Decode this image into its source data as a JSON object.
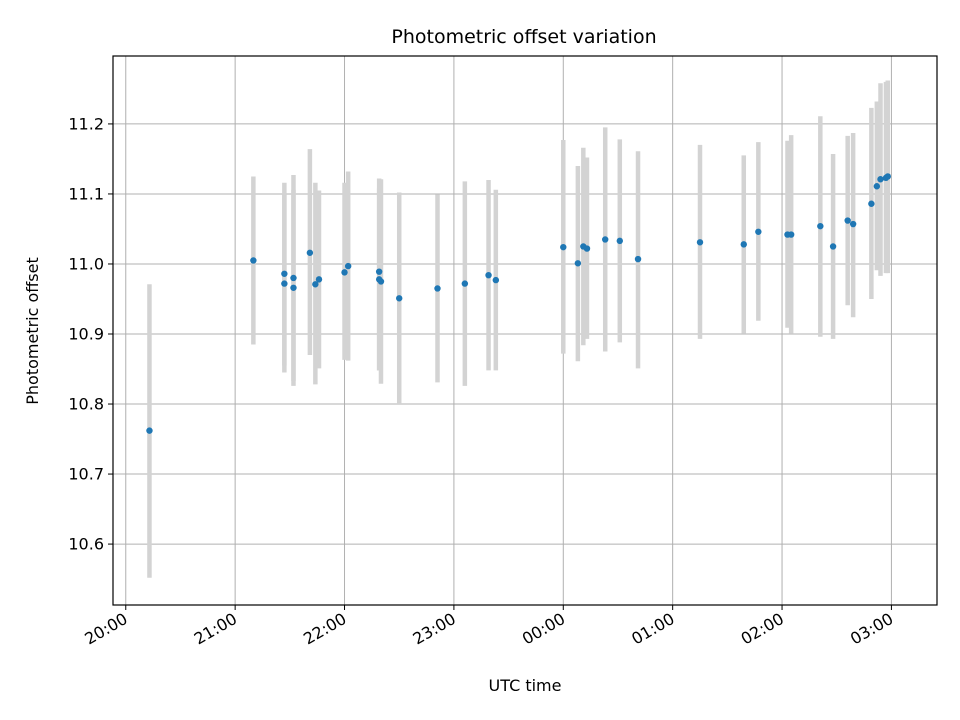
{
  "chart_data": {
    "type": "scatter",
    "title": "Photometric offset variation",
    "xlabel": "UTC time",
    "ylabel": "Photometric offset",
    "x_ticks": [
      "20:00",
      "21:00",
      "22:00",
      "23:00",
      "00:00",
      "01:00",
      "02:00",
      "03:00"
    ],
    "y_ticks": [
      "10.6",
      "10.7",
      "10.8",
      "10.9",
      "11.0",
      "11.1",
      "11.2"
    ],
    "xlim": [
      "19:53",
      "03:25"
    ],
    "ylim": [
      10.513,
      11.297
    ],
    "grid": true,
    "point_color": "#1f77b4",
    "errorbar_color": "#d3d3d3",
    "points": [
      {
        "t": "20:13",
        "y": 10.762,
        "lo": 10.552,
        "hi": 10.971
      },
      {
        "t": "21:10",
        "y": 11.005,
        "lo": 10.885,
        "hi": 11.125
      },
      {
        "t": "21:27",
        "y": 10.986,
        "lo": 10.855,
        "hi": 11.116
      },
      {
        "t": "21:27",
        "y": 10.972,
        "lo": 10.845,
        "hi": 11.099
      },
      {
        "t": "21:32",
        "y": 10.98,
        "lo": 10.833,
        "hi": 11.127
      },
      {
        "t": "21:32",
        "y": 10.966,
        "lo": 10.826,
        "hi": 11.106
      },
      {
        "t": "21:41",
        "y": 11.016,
        "lo": 10.87,
        "hi": 11.164
      },
      {
        "t": "21:44",
        "y": 10.971,
        "lo": 10.828,
        "hi": 11.116
      },
      {
        "t": "21:46",
        "y": 10.978,
        "lo": 10.851,
        "hi": 11.105
      },
      {
        "t": "22:00",
        "y": 10.988,
        "lo": 10.863,
        "hi": 11.116
      },
      {
        "t": "22:02",
        "y": 10.997,
        "lo": 10.862,
        "hi": 11.132
      },
      {
        "t": "22:19",
        "y": 10.978,
        "lo": 10.848,
        "hi": 11.108
      },
      {
        "t": "22:19",
        "y": 10.989,
        "lo": 10.848,
        "hi": 11.122
      },
      {
        "t": "22:20",
        "y": 10.975,
        "lo": 10.829,
        "hi": 11.121
      },
      {
        "t": "22:30",
        "y": 10.951,
        "lo": 10.8,
        "hi": 11.102
      },
      {
        "t": "22:51",
        "y": 10.965,
        "lo": 10.831,
        "hi": 11.099
      },
      {
        "t": "23:06",
        "y": 10.972,
        "lo": 10.826,
        "hi": 11.118
      },
      {
        "t": "23:19",
        "y": 10.984,
        "lo": 10.848,
        "hi": 11.12
      },
      {
        "t": "23:23",
        "y": 10.977,
        "lo": 10.848,
        "hi": 11.106
      },
      {
        "t": "00:00",
        "y": 11.024,
        "lo": 10.872,
        "hi": 11.177
      },
      {
        "t": "00:08",
        "y": 11.001,
        "lo": 10.861,
        "hi": 11.14
      },
      {
        "t": "00:11",
        "y": 11.025,
        "lo": 10.884,
        "hi": 11.166
      },
      {
        "t": "00:13",
        "y": 11.022,
        "lo": 10.893,
        "hi": 11.152
      },
      {
        "t": "00:23",
        "y": 11.035,
        "lo": 10.875,
        "hi": 11.195
      },
      {
        "t": "00:31",
        "y": 11.033,
        "lo": 10.888,
        "hi": 11.178
      },
      {
        "t": "00:41",
        "y": 11.007,
        "lo": 10.851,
        "hi": 11.161
      },
      {
        "t": "01:15",
        "y": 11.031,
        "lo": 10.893,
        "hi": 11.17
      },
      {
        "t": "01:39",
        "y": 11.028,
        "lo": 10.901,
        "hi": 11.155
      },
      {
        "t": "01:47",
        "y": 11.046,
        "lo": 10.919,
        "hi": 11.174
      },
      {
        "t": "02:03",
        "y": 11.042,
        "lo": 10.909,
        "hi": 11.176
      },
      {
        "t": "02:05",
        "y": 11.042,
        "lo": 10.901,
        "hi": 11.184
      },
      {
        "t": "02:21",
        "y": 11.054,
        "lo": 10.896,
        "hi": 11.211
      },
      {
        "t": "02:28",
        "y": 11.025,
        "lo": 10.893,
        "hi": 11.157
      },
      {
        "t": "02:36",
        "y": 11.062,
        "lo": 10.941,
        "hi": 11.183
      },
      {
        "t": "02:39",
        "y": 11.057,
        "lo": 10.924,
        "hi": 11.187
      },
      {
        "t": "02:49",
        "y": 11.086,
        "lo": 10.95,
        "hi": 11.223
      },
      {
        "t": "02:52",
        "y": 11.111,
        "lo": 10.991,
        "hi": 11.232
      },
      {
        "t": "02:54",
        "y": 11.121,
        "lo": 10.983,
        "hi": 11.258
      },
      {
        "t": "02:57",
        "y": 11.123,
        "lo": 10.987,
        "hi": 11.26
      },
      {
        "t": "02:58",
        "y": 11.125,
        "lo": 10.987,
        "hi": 11.262
      }
    ]
  }
}
